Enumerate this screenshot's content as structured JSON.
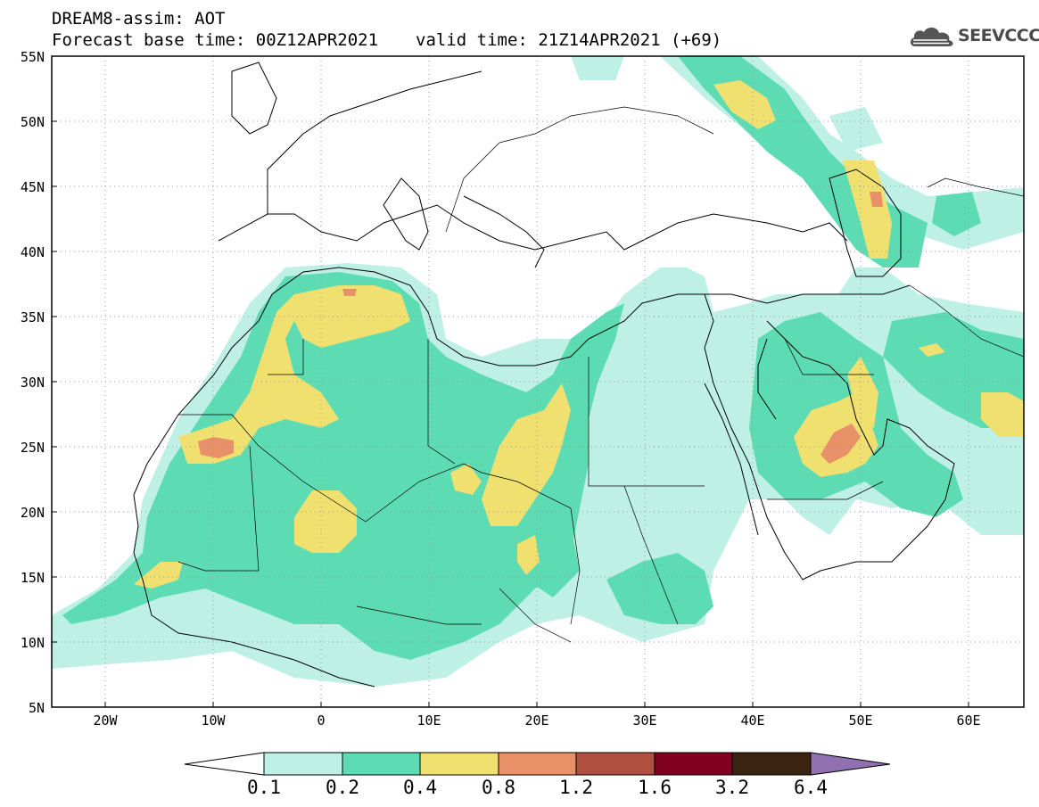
{
  "header": {
    "line1": "DREAM8-assim: AOT",
    "base_time": "Forecast base time: 00Z12APR2021",
    "valid_time": "valid time: 21Z14APR2021 (+69)"
  },
  "logo": {
    "text": "SEEVCCC",
    "icon": "cloud-icon"
  },
  "map": {
    "lat_labels": [
      "55N",
      "50N",
      "45N",
      "40N",
      "35N",
      "30N",
      "25N",
      "20N",
      "15N",
      "10N",
      "5N"
    ],
    "lon_labels": [
      "20W",
      "10W",
      "0",
      "10E",
      "20E",
      "30E",
      "40E",
      "50E",
      "60E"
    ],
    "colors": {
      "c01": "#bff0e6",
      "c02": "#5ddcb4",
      "c04": "#f0e070",
      "c08": "#e89068",
      "c12": "#b05040",
      "c16": "#800020",
      "c32": "#3a2410",
      "c64": "#9070b0"
    }
  },
  "colorbar": {
    "labels": [
      "0.1",
      "0.2",
      "0.4",
      "0.8",
      "1.2",
      "1.6",
      "3.2",
      "6.4"
    ],
    "colors": [
      "#bff0e6",
      "#5ddcb4",
      "#f0e070",
      "#e89068",
      "#b05040",
      "#800020",
      "#3a2410"
    ],
    "over_color": "#9070b0"
  }
}
